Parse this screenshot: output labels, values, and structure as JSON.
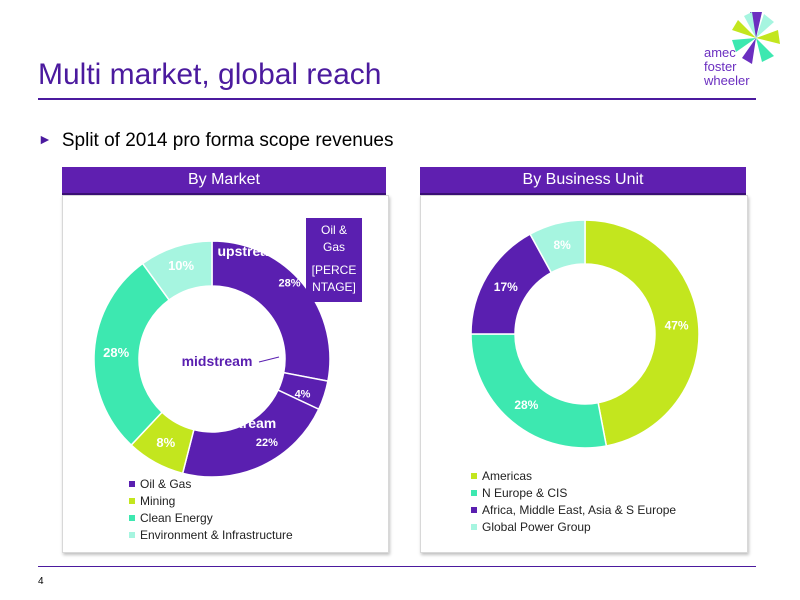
{
  "slide": {
    "title": "Multi market, global reach",
    "bullet": "Split of 2014 pro forma scope revenues",
    "page_number": "4",
    "logo_lines": [
      "amec",
      "foster",
      "wheeler"
    ]
  },
  "banners": {
    "left": "By Market",
    "right": "By Business Unit"
  },
  "colors": {
    "purple": "#5a1fb0",
    "lime": "#c3e61e",
    "aqua": "#3de8b0",
    "pale_aqua": "#a6f5e0",
    "title": "#4b1a9e"
  },
  "chart_data": [
    {
      "type": "pie",
      "variant": "donut",
      "title": "By Market",
      "slices": [
        {
          "label": "upstream",
          "value": 28,
          "label_text": "28%",
          "color": "#5a1fb0"
        },
        {
          "label": "midstream",
          "value": 4,
          "label_text": "4%",
          "color": "#5a1fb0"
        },
        {
          "label": "downstream",
          "value": 22,
          "label_text": "22%",
          "color": "#5a1fb0"
        },
        {
          "label": "Mining",
          "value": 8,
          "label_text": "8%",
          "color": "#c3e61e"
        },
        {
          "label": "Clean Energy",
          "value": 28,
          "label_text": "28%",
          "color": "#3de8b0"
        },
        {
          "label": "Environment & Infrastructure",
          "value": 10,
          "label_text": "10%",
          "color": "#a6f5e0"
        }
      ],
      "callout": {
        "line1": "Oil &",
        "line2": "Gas",
        "line3": "[PERCE",
        "line4": "NTAGE]"
      },
      "legend": [
        {
          "label": "Oil & Gas",
          "color": "#5a1fb0"
        },
        {
          "label": "Mining",
          "color": "#c3e61e"
        },
        {
          "label": "Clean Energy",
          "color": "#3de8b0"
        },
        {
          "label": "Environment & Infrastructure",
          "color": "#a6f5e0"
        }
      ]
    },
    {
      "type": "pie",
      "variant": "donut",
      "title": "By Business Unit",
      "slices": [
        {
          "label": "Americas",
          "value": 47,
          "label_text": "47%",
          "color": "#c3e61e"
        },
        {
          "label": "N Europe & CIS",
          "value": 28,
          "label_text": "28%",
          "color": "#3de8b0"
        },
        {
          "label": "Africa, Middle East, Asia & S Europe",
          "value": 17,
          "label_text": "17%",
          "color": "#5a1fb0"
        },
        {
          "label": "Global Power Group",
          "value": 8,
          "label_text": "8%",
          "color": "#a6f5e0"
        }
      ],
      "legend": [
        {
          "label": "Americas",
          "color": "#c3e61e"
        },
        {
          "label": "N Europe & CIS",
          "color": "#3de8b0"
        },
        {
          "label": "Africa, Middle East, Asia & S Europe",
          "color": "#5a1fb0"
        },
        {
          "label": "Global Power Group",
          "color": "#a6f5e0"
        }
      ]
    }
  ]
}
